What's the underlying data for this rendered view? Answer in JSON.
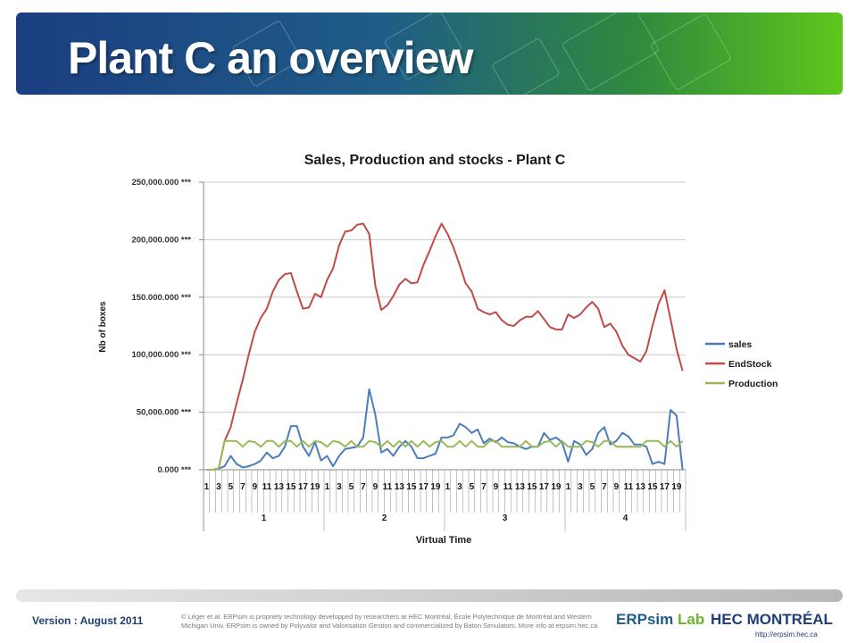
{
  "slide": {
    "title": "Plant C an overview",
    "version": "Version : August 2011",
    "footer_note": "© Léger et al. ERPsim is propriety technology developped by researchers at HEC Montréal, École Polytechnique de Montréal and Western Michigan Univ. ERPsim is owned by Polyvalor and Valorisation Gestion and commercialized by Baton Simulators. More info at erpsim.hec.ca",
    "erpsim_logo": "ERPsim",
    "erpsim_logo_lab": "Lab",
    "hec_logo": "HEC MONTRÉAL",
    "hec_url": "http://erpsim.hec.ca"
  },
  "chart_data": {
    "type": "line",
    "title": "Sales, Production and stocks - Plant C",
    "xlabel": "Virtual Time",
    "ylabel": "Nb of boxes",
    "ylim": [
      0,
      250000
    ],
    "yticks": [
      0,
      50000,
      100000,
      150000,
      200000,
      250000
    ],
    "ytick_labels": [
      "0.000 ***",
      "50,000.000 ***",
      "100,000.000 ***",
      "150.000.000 ***",
      "200,000.000 ***",
      "250,000.000 ***"
    ],
    "x_day_labels": [
      "1",
      "3",
      "5",
      "7",
      "9",
      "11",
      "13",
      "15",
      "17",
      "19"
    ],
    "rounds": [
      "1",
      "2",
      "3",
      "4"
    ],
    "days_per_round": 20,
    "grid": true,
    "legend_position": "right",
    "series": [
      {
        "name": "sales",
        "color": "#4a7ebb",
        "values": [
          0,
          0,
          1000,
          3000,
          12000,
          5000,
          2000,
          3000,
          5000,
          8000,
          15000,
          10000,
          12000,
          20000,
          38000,
          38000,
          20000,
          12000,
          24000,
          8000,
          12000,
          3000,
          12000,
          18000,
          19000,
          20000,
          28000,
          70000,
          48000,
          15000,
          18000,
          12000,
          20000,
          25000,
          20000,
          10000,
          10000,
          12000,
          14000,
          28000,
          28000,
          30000,
          40000,
          37000,
          32000,
          35000,
          23000,
          27000,
          24000,
          28000,
          24000,
          23000,
          20000,
          18000,
          20000,
          20000,
          32000,
          26000,
          28000,
          24000,
          7000,
          25000,
          22000,
          13000,
          18000,
          32000,
          37000,
          22000,
          25000,
          32000,
          29000,
          22000,
          22000,
          20000,
          5000,
          7000,
          5000,
          52000,
          47000,
          0
        ]
      },
      {
        "name": "EndStock",
        "color": "#be4b48",
        "values": [
          0,
          0,
          1000,
          25000,
          37000,
          58000,
          78000,
          100000,
          120000,
          132000,
          140000,
          155000,
          165000,
          170000,
          171000,
          155000,
          140000,
          141000,
          153000,
          150000,
          165000,
          175000,
          195000,
          207000,
          208000,
          213000,
          214000,
          205000,
          160000,
          139000,
          143000,
          151000,
          161000,
          166000,
          162000,
          163000,
          178000,
          190000,
          203000,
          214000,
          205000,
          193000,
          178000,
          162000,
          155000,
          140000,
          137000,
          135000,
          137000,
          130000,
          126000,
          125000,
          130000,
          133000,
          133000,
          138000,
          131000,
          124000,
          122000,
          122000,
          135000,
          132000,
          135000,
          141000,
          146000,
          140000,
          124000,
          127000,
          120000,
          108000,
          100000,
          97000,
          94000,
          103000,
          125000,
          144000,
          156000,
          131000,
          105000,
          86000
        ]
      },
      {
        "name": "Production",
        "color": "#98b954",
        "values": [
          0,
          0,
          1000,
          25000,
          25000,
          25000,
          20000,
          25000,
          24000,
          20000,
          25000,
          25000,
          20000,
          25000,
          25000,
          20000,
          25000,
          20000,
          25000,
          24000,
          20000,
          25000,
          24000,
          20000,
          25000,
          20000,
          20000,
          25000,
          24000,
          20000,
          25000,
          20000,
          25000,
          20000,
          25000,
          20000,
          25000,
          20000,
          24000,
          25000,
          20000,
          20000,
          25000,
          20000,
          25000,
          20000,
          20000,
          25000,
          25000,
          20000,
          20000,
          20000,
          20000,
          25000,
          20000,
          20000,
          24000,
          25000,
          20000,
          25000,
          20000,
          20000,
          20000,
          25000,
          24000,
          20000,
          25000,
          25000,
          20000,
          20000,
          20000,
          20000,
          20000,
          25000,
          25000,
          25000,
          20000,
          25000,
          20000,
          25000
        ]
      }
    ]
  }
}
